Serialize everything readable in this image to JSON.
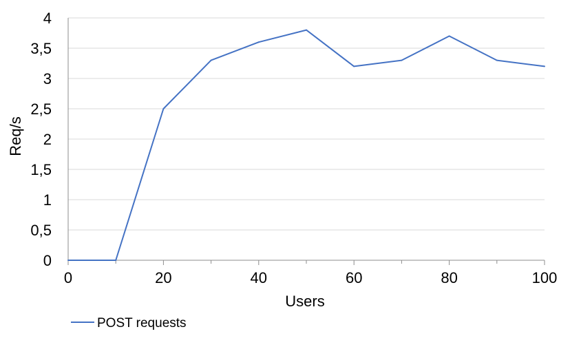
{
  "chart_data": {
    "type": "line",
    "title": "",
    "xlabel": "Users",
    "ylabel": "Req/s",
    "x": [
      0,
      10,
      20,
      30,
      40,
      50,
      60,
      70,
      80,
      90,
      100
    ],
    "series": [
      {
        "name": "POST requests",
        "values": [
          0,
          0,
          2.5,
          3.3,
          3.6,
          3.8,
          3.2,
          3.3,
          3.7,
          3.3,
          3.2
        ]
      }
    ],
    "xlim": [
      0,
      100
    ],
    "ylim": [
      0,
      4
    ],
    "xticks": [
      0,
      20,
      40,
      60,
      80,
      100
    ],
    "xtick_labels": [
      "0",
      "20",
      "40",
      "60",
      "80",
      "100"
    ],
    "yticks": [
      0,
      0.5,
      1,
      1.5,
      2,
      2.5,
      3,
      3.5,
      4
    ],
    "ytick_labels": [
      "0",
      "0,5",
      "1",
      "1,5",
      "2",
      "2,5",
      "3",
      "3,5",
      "4"
    ],
    "grid": "horizontal",
    "legend_position": "bottom-left",
    "colors": {
      "series": "#4472C4",
      "grid": "#d9d9d9",
      "axis": "#8c8c8c"
    }
  }
}
